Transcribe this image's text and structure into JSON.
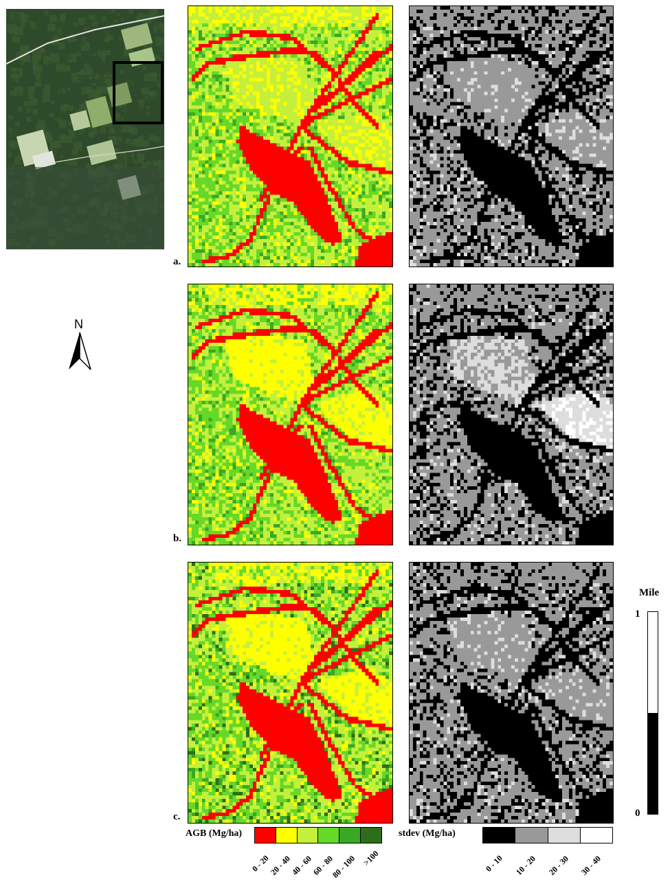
{
  "inset": {
    "description_colors": [
      "#2f4a2a",
      "#3c5a30",
      "#6b8a4f",
      "#9fb77e"
    ]
  },
  "north_arrow": {
    "label": "N"
  },
  "panels": [
    {
      "label": "a.",
      "seed": 11,
      "variant": "a"
    },
    {
      "label": "b.",
      "seed": 23,
      "variant": "b"
    },
    {
      "label": "c.",
      "seed": 37,
      "variant": "c"
    }
  ],
  "agb_legend": {
    "title": "AGB (Mg/ha)",
    "classes": [
      {
        "label": "0 - 20",
        "color": "#ff0000"
      },
      {
        "label": "20 - 40",
        "color": "#ffff00"
      },
      {
        "label": "40 - 60",
        "color": "#c4f03c"
      },
      {
        "label": "60 - 80",
        "color": "#66d828"
      },
      {
        "label": "80 - 100",
        "color": "#3aa824"
      },
      {
        "label": ">100",
        "color": "#2e6e1a"
      }
    ]
  },
  "stdev_legend": {
    "title": "stdev (Mg/ha)",
    "classes": [
      {
        "label": "0 - 10",
        "color": "#000000"
      },
      {
        "label": "10 - 20",
        "color": "#999999"
      },
      {
        "label": "20 - 30",
        "color": "#dddddd"
      },
      {
        "label": "30 - 40",
        "color": "#ffffff"
      }
    ]
  },
  "scale": {
    "title": "Mile",
    "top": "1",
    "bottom": "0"
  }
}
